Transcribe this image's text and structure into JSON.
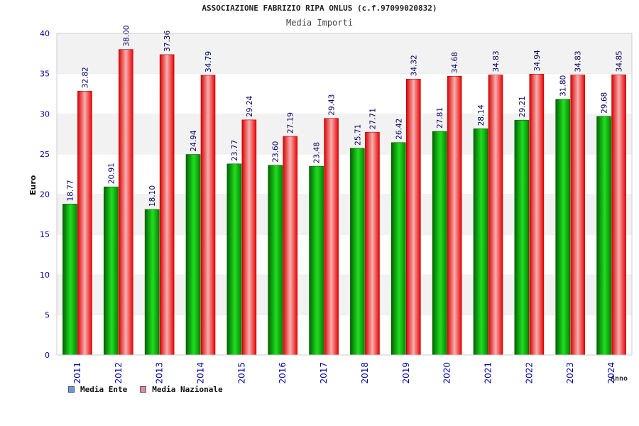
{
  "chart_data": {
    "type": "bar",
    "title": "ASSOCIAZIONE FABRIZIO RIPA ONLUS (c.f.97099020832)",
    "subtitle": "Media Importi",
    "xlabel": "Anno",
    "ylabel": "Euro",
    "ylim": [
      0,
      40
    ],
    "yticks": [
      "0",
      "5",
      "10",
      "15",
      "20",
      "25",
      "30",
      "35",
      "40"
    ],
    "categories": [
      "2011",
      "2012",
      "2013",
      "2014",
      "2015",
      "2016",
      "2017",
      "2018",
      "2019",
      "2020",
      "2021",
      "2022",
      "2023",
      "2024"
    ],
    "series": [
      {
        "name": "Media Ente",
        "color": "#00aa00",
        "values": [
          18.77,
          20.91,
          18.1,
          24.94,
          23.77,
          23.6,
          23.48,
          25.71,
          26.42,
          27.81,
          28.14,
          29.21,
          31.8,
          29.68
        ],
        "labels": [
          "18.77",
          "20.91",
          "18.10",
          "24.94",
          "23.77",
          "23.60",
          "23.48",
          "25.71",
          "26.42",
          "27.81",
          "28.14",
          "29.21",
          "31.80",
          "29.68"
        ]
      },
      {
        "name": "Media Nazionale",
        "color": "#ee1111",
        "values": [
          32.82,
          38.0,
          37.36,
          34.79,
          29.24,
          27.19,
          29.43,
          27.71,
          34.32,
          34.68,
          34.83,
          34.94,
          34.83,
          34.85
        ],
        "labels": [
          "32.82",
          "38.00",
          "37.36",
          "34.79",
          "29.24",
          "27.19",
          "29.43",
          "27.71",
          "34.32",
          "34.68",
          "34.83",
          "34.94",
          "34.83",
          "34.85"
        ]
      }
    ],
    "legend": {
      "position": "bottom-left",
      "items": [
        {
          "label": "Media Ente",
          "color": "#6699dd"
        },
        {
          "label": "Media Nazionale",
          "color": "#dd88aa"
        }
      ]
    },
    "grid": true,
    "colors": {
      "band_light": "#f2f2f2",
      "band_white": "#ffffff",
      "axis_text": "#0000aa",
      "value_text": "#000066"
    }
  }
}
